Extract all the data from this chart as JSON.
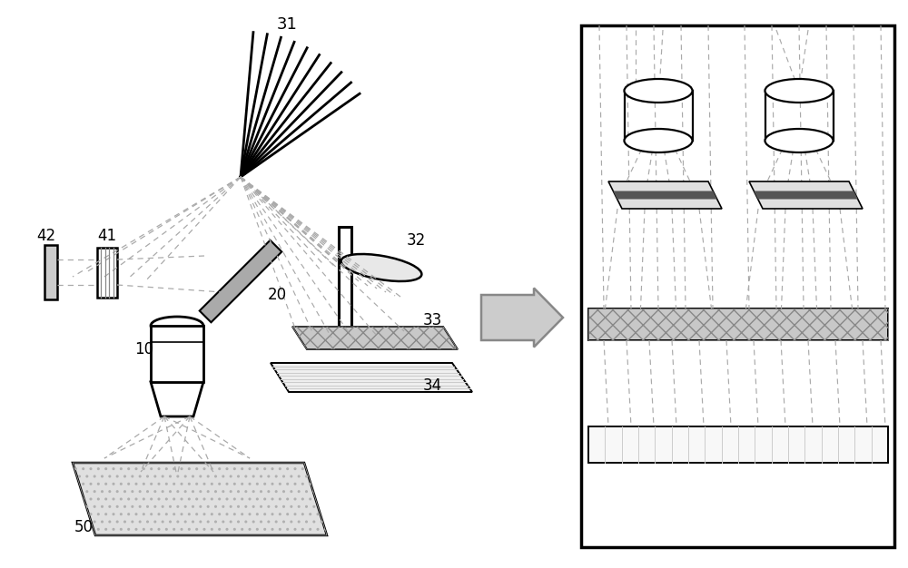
{
  "bg_color": "#ffffff",
  "line_color": "#000000",
  "gray_fill": "#aaaaaa",
  "light_gray": "#cccccc",
  "dark_gray": "#555555",
  "figsize": [
    10.0,
    6.26
  ],
  "dpi": 100
}
